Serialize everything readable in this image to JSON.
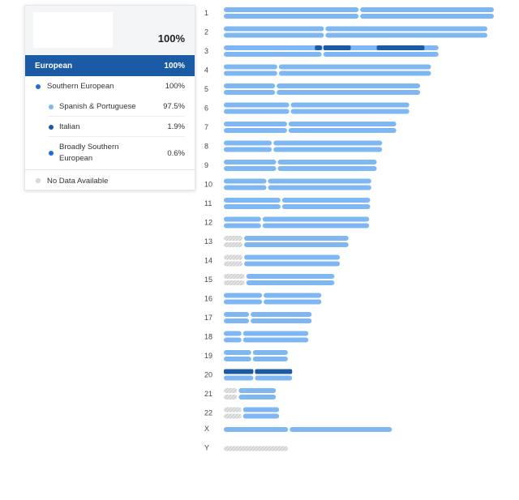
{
  "panel": {
    "total_percent": "100%",
    "region": {
      "label": "European",
      "percent": "100%"
    },
    "subregion": {
      "label": "Southern European",
      "percent": "100%",
      "color": "#1e6fd9"
    },
    "populations": [
      {
        "label": "Spanish & Portuguese",
        "percent": "97.5%",
        "color": "#7fb7f2"
      },
      {
        "label": "Italian",
        "percent": "1.9%",
        "color": "#1b5ba6"
      },
      {
        "label": "Broadly Southern European",
        "percent": "0.6%",
        "color": "#1e6fd9"
      }
    ],
    "no_data": {
      "label": "No Data Available",
      "color": "#dddddd"
    }
  },
  "chart_data": {
    "type": "chromosome-painting",
    "categories": [
      "1",
      "2",
      "3",
      "4",
      "5",
      "6",
      "7",
      "8",
      "9",
      "10",
      "11",
      "12",
      "13",
      "14",
      "15",
      "16",
      "17",
      "18",
      "19",
      "20",
      "21",
      "22",
      "X",
      "Y"
    ],
    "colors": {
      "spanish_portuguese": "#7fb7f2",
      "italian": "#1b5ba6",
      "broadly_southern": "#1e6fd9",
      "no_data": "#d9d9d9"
    },
    "chromosomes": [
      {
        "label": "1",
        "length": 249,
        "centromere": 125
      },
      {
        "label": "2",
        "length": 243,
        "centromere": 93
      },
      {
        "label": "3",
        "length": 198,
        "centromere": 91,
        "segments": [
          {
            "copy": 0,
            "start": 84,
            "end": 90,
            "type": "italian"
          },
          {
            "copy": 0,
            "start": 90,
            "end": 117,
            "type": "italian"
          },
          {
            "copy": 0,
            "start": 141,
            "end": 185,
            "type": "italian"
          }
        ]
      },
      {
        "label": "4",
        "length": 191,
        "centromere": 50
      },
      {
        "label": "5",
        "length": 181,
        "centromere": 48
      },
      {
        "label": "6",
        "length": 171,
        "centromere": 61
      },
      {
        "label": "7",
        "length": 159,
        "centromere": 59
      },
      {
        "label": "8",
        "length": 146,
        "centromere": 45
      },
      {
        "label": "9",
        "length": 141,
        "centromere": 49
      },
      {
        "label": "10",
        "length": 136,
        "centromere": 40
      },
      {
        "label": "11",
        "length": 135,
        "centromere": 53
      },
      {
        "label": "12",
        "length": 134,
        "centromere": 35
      },
      {
        "label": "13",
        "length": 115,
        "centromere": 18,
        "nodata_end": 18
      },
      {
        "label": "14",
        "length": 107,
        "centromere": 18,
        "nodata_end": 18
      },
      {
        "label": "15",
        "length": 102,
        "centromere": 20,
        "nodata_end": 20
      },
      {
        "label": "16",
        "length": 90,
        "centromere": 36
      },
      {
        "label": "17",
        "length": 81,
        "centromere": 24
      },
      {
        "label": "18",
        "length": 78,
        "centromere": 17
      },
      {
        "label": "19",
        "length": 59,
        "centromere": 26
      },
      {
        "label": "20",
        "length": 63,
        "centromere": 28,
        "segments": [
          {
            "copy": 0,
            "start": 0,
            "end": 63,
            "type": "italian"
          }
        ]
      },
      {
        "label": "21",
        "length": 48,
        "centromere": 13,
        "nodata_end": 13
      },
      {
        "label": "22",
        "length": 51,
        "centromere": 17,
        "nodata_end": 17
      },
      {
        "label": "X",
        "length": 155,
        "centromere": 60,
        "single": true
      },
      {
        "label": "Y",
        "length": 59,
        "centromere": 12,
        "single": true,
        "all_nodata": true
      }
    ]
  }
}
